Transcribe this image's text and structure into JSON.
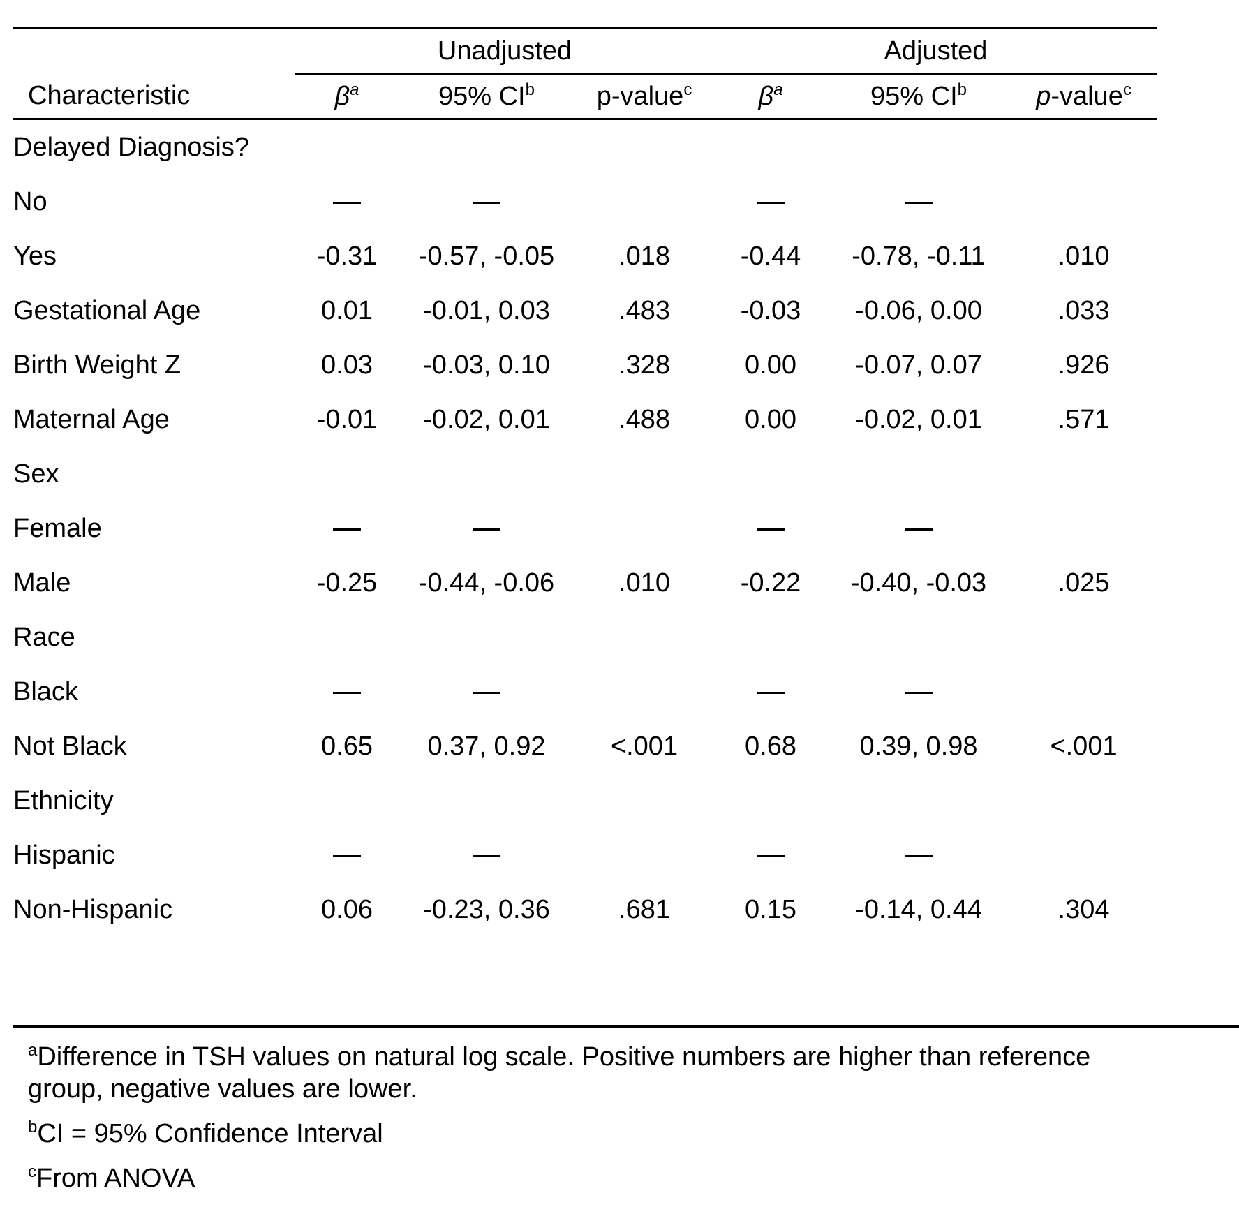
{
  "table": {
    "groups": {
      "unadjusted": "Unadjusted",
      "adjusted": "Adjusted"
    },
    "columns": {
      "characteristic": "Characteristic",
      "beta": "β",
      "beta_sup": "a",
      "ci": "95% CI",
      "ci_sup": "b",
      "pvalue": "p-value",
      "pvalue_sup": "c",
      "pvalue_adj_p": "p",
      "pvalue_adj_rest": "-value"
    },
    "rows": [
      {
        "label": "Delayed Diagnosis?",
        "u_beta": "",
        "u_ci": "",
        "u_p": "",
        "a_beta": "",
        "a_ci": "",
        "a_p": ""
      },
      {
        "label": "No",
        "u_beta": "—",
        "u_ci": "—",
        "u_p": "",
        "a_beta": "—",
        "a_ci": "—",
        "a_p": ""
      },
      {
        "label": "Yes",
        "u_beta": "-0.31",
        "u_ci": "-0.57, -0.05",
        "u_p": ".018",
        "a_beta": "-0.44",
        "a_ci": "-0.78, -0.11",
        "a_p": ".010"
      },
      {
        "label": "Gestational Age",
        "u_beta": "0.01",
        "u_ci": "-0.01, 0.03",
        "u_p": ".483",
        "a_beta": "-0.03",
        "a_ci": "-0.06, 0.00",
        "a_p": ".033"
      },
      {
        "label": "Birth Weight Z",
        "u_beta": "0.03",
        "u_ci": "-0.03, 0.10",
        "u_p": ".328",
        "a_beta": "0.00",
        "a_ci": "-0.07, 0.07",
        "a_p": ".926"
      },
      {
        "label": "Maternal Age",
        "u_beta": "-0.01",
        "u_ci": "-0.02, 0.01",
        "u_p": ".488",
        "a_beta": "0.00",
        "a_ci": "-0.02, 0.01",
        "a_p": ".571"
      },
      {
        "label": "Sex",
        "u_beta": "",
        "u_ci": "",
        "u_p": "",
        "a_beta": "",
        "a_ci": "",
        "a_p": ""
      },
      {
        "label": "Female",
        "u_beta": "—",
        "u_ci": "—",
        "u_p": "",
        "a_beta": "—",
        "a_ci": "—",
        "a_p": ""
      },
      {
        "label": "Male",
        "u_beta": "-0.25",
        "u_ci": "-0.44, -0.06",
        "u_p": ".010",
        "a_beta": "-0.22",
        "a_ci": "-0.40, -0.03",
        "a_p": ".025"
      },
      {
        "label": "Race",
        "u_beta": "",
        "u_ci": "",
        "u_p": "",
        "a_beta": "",
        "a_ci": "",
        "a_p": ""
      },
      {
        "label": "Black",
        "u_beta": "—",
        "u_ci": "—",
        "u_p": "",
        "a_beta": "—",
        "a_ci": "—",
        "a_p": ""
      },
      {
        "label": "Not Black",
        "u_beta": "0.65",
        "u_ci": "0.37, 0.92",
        "u_p": "<.001",
        "a_beta": "0.68",
        "a_ci": "0.39, 0.98",
        "a_p": "<.001"
      },
      {
        "label": "Ethnicity",
        "u_beta": "",
        "u_ci": "",
        "u_p": "",
        "a_beta": "",
        "a_ci": "",
        "a_p": ""
      },
      {
        "label": "Hispanic",
        "u_beta": "—",
        "u_ci": "—",
        "u_p": "",
        "a_beta": "—",
        "a_ci": "—",
        "a_p": ""
      },
      {
        "label": "Non-Hispanic",
        "u_beta": "0.06",
        "u_ci": "-0.23, 0.36",
        "u_p": ".681",
        "a_beta": "0.15",
        "a_ci": "-0.14, 0.44",
        "a_p": ".304"
      }
    ]
  },
  "footnotes": {
    "a_mark": "a",
    "a_text": "Difference in TSH values on natural log scale. Positive numbers are higher than reference group, negative values are lower.",
    "b_mark": "b",
    "b_text": "CI = 95% Confidence Interval",
    "c_mark": "c",
    "c_text": "From ANOVA"
  }
}
